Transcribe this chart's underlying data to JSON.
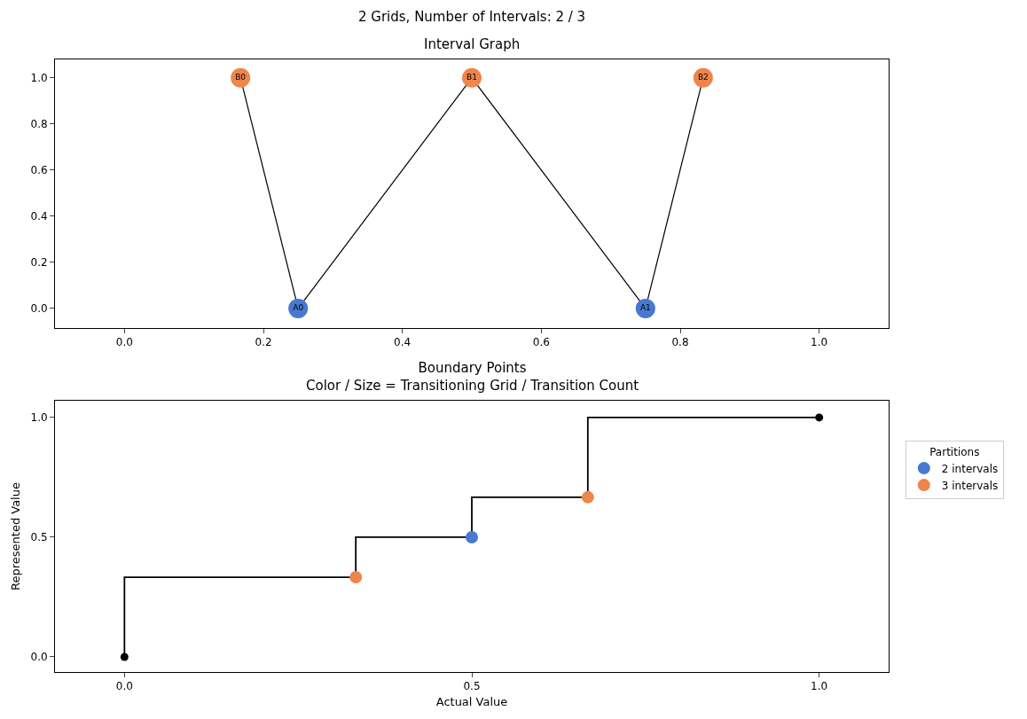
{
  "chart_data": [
    {
      "type": "scatter",
      "title": "Interval Graph",
      "annotations": [
        "2 Grids, Number of Intervals: 2 / 3"
      ],
      "xlim": [
        -0.1,
        1.1
      ],
      "ylim": [
        -0.085,
        1.08
      ],
      "xticks": [
        {
          "value": 0,
          "label": "0.0"
        },
        {
          "value": 0.2,
          "label": "0.2"
        },
        {
          "value": 0.4,
          "label": "0.4"
        },
        {
          "value": 0.6,
          "label": "0.6"
        },
        {
          "value": 0.8,
          "label": "0.8"
        },
        {
          "value": 1,
          "label": "1.0"
        }
      ],
      "yticks": [
        {
          "value": 0,
          "label": "0.0"
        },
        {
          "value": 0.2,
          "label": "0.2"
        },
        {
          "value": 0.4,
          "label": "0.4"
        },
        {
          "value": 0.6,
          "label": "0.6"
        },
        {
          "value": 0.8,
          "label": "0.8"
        },
        {
          "value": 1,
          "label": "1.0"
        }
      ],
      "series": [
        {
          "type": "line",
          "color": "#000000",
          "marker": "none",
          "x": [
            0.167,
            0.25,
            0.5,
            0.75,
            0.833
          ],
          "values": [
            1,
            0,
            1,
            0,
            1
          ]
        },
        {
          "color": "#4878d0",
          "marker": "circle",
          "x": [
            0.25,
            0.75
          ],
          "values": [
            0,
            0
          ],
          "value_labels": [
            "A0",
            "A1"
          ]
        },
        {
          "color": "#ee854a",
          "marker": "circle",
          "x": [
            0.167,
            0.5,
            0.833
          ],
          "values": [
            1,
            1,
            1
          ],
          "value_labels": [
            "B0",
            "B1",
            "B2"
          ]
        }
      ]
    },
    {
      "type": "step",
      "title": "Boundary Points\nColor / Size = Transitioning Grid / Transition Count",
      "xlabel": "Actual Value",
      "ylabel": "Represented Value",
      "xlim": [
        -0.1,
        1.1
      ],
      "ylim": [
        -0.063,
        1.07
      ],
      "xticks": [
        {
          "value": 0,
          "label": "0.0"
        },
        {
          "value": 0.5,
          "label": "0.5"
        },
        {
          "value": 1,
          "label": "1.0"
        }
      ],
      "yticks": [
        {
          "value": 0,
          "label": "0.0"
        },
        {
          "value": 0.5,
          "label": "0.5"
        },
        {
          "value": 1,
          "label": "1.0"
        }
      ],
      "legend": "right",
      "legend_title": "Partitions",
      "series": [
        {
          "color": "#000000",
          "marker": "none",
          "x": [
            0,
            0.333,
            0.5,
            0.667,
            1
          ],
          "values": [
            0,
            0.333,
            0.5,
            0.667,
            1
          ]
        },
        {
          "type": "scatter",
          "color": "#000000",
          "marker": "circle",
          "x": [
            0,
            1
          ],
          "values": [
            0,
            1
          ]
        },
        {
          "type": "scatter",
          "name": "2 intervals",
          "color": "#4878d0",
          "marker": "circle",
          "x": [
            0.5
          ],
          "values": [
            0.5
          ]
        },
        {
          "type": "scatter",
          "name": "3 intervals",
          "color": "#ee854a",
          "marker": "circle",
          "x": [
            0.333,
            0.667
          ],
          "values": [
            0.333,
            0.667
          ]
        }
      ]
    }
  ]
}
